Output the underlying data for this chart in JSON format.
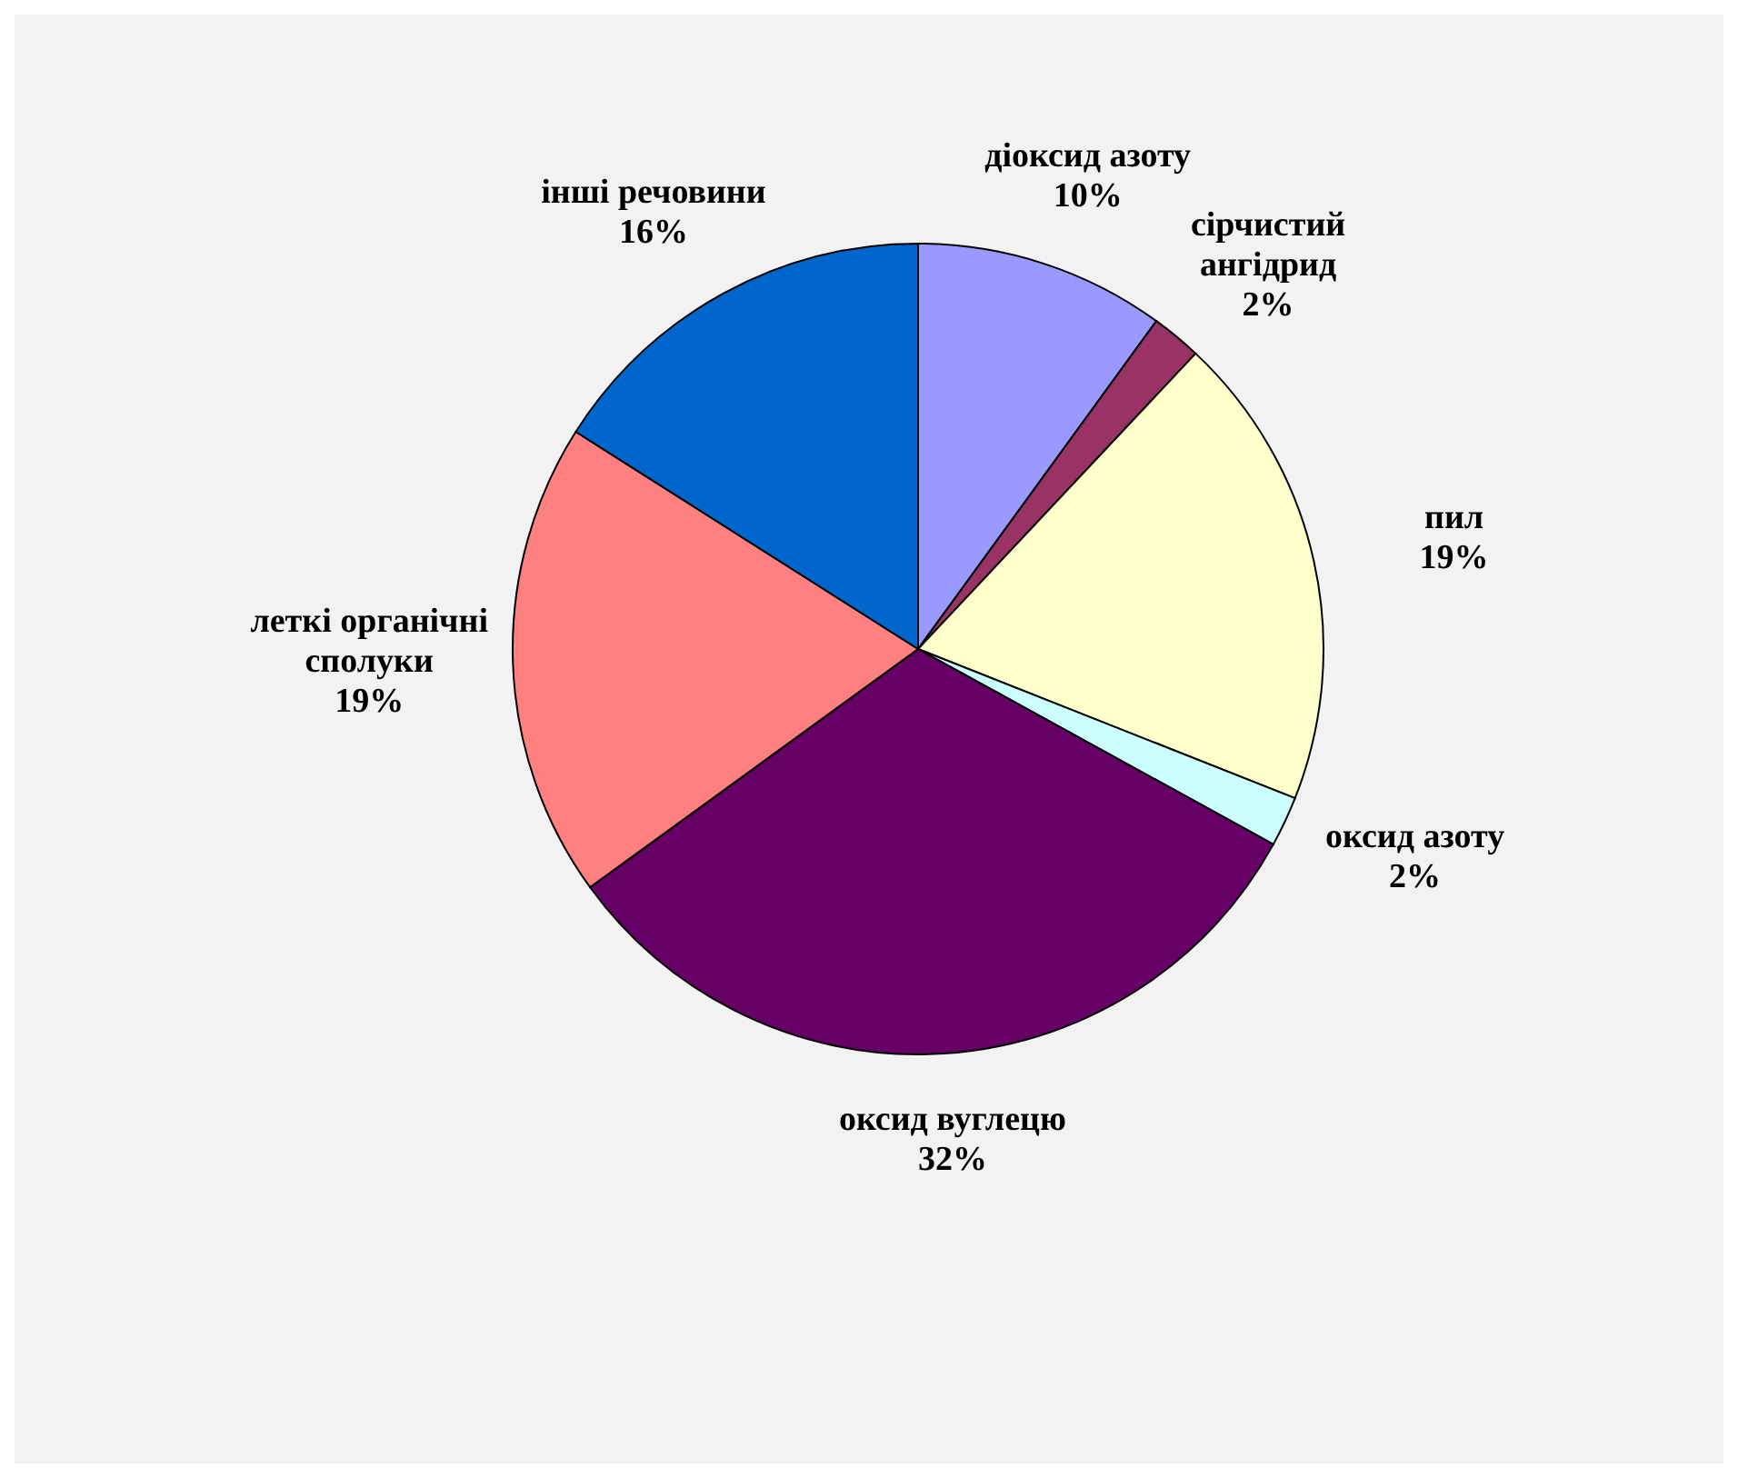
{
  "chart_data": {
    "type": "pie",
    "categories": [
      "діоксид азоту",
      "сірчистий ангідрид",
      "пил",
      "оксид азоту",
      "оксид вуглецю",
      "леткі органічні сполуки",
      "інші речовини"
    ],
    "values": [
      10,
      2,
      19,
      2,
      32,
      19,
      16
    ],
    "value_labels": [
      "10%",
      "2%",
      "19%",
      "2%",
      "32%",
      "19%",
      "16%"
    ],
    "colors": [
      "#9999ff",
      "#993366",
      "#ffffcc",
      "#ccffff",
      "#660066",
      "#ff8080",
      "#0066cc"
    ]
  }
}
